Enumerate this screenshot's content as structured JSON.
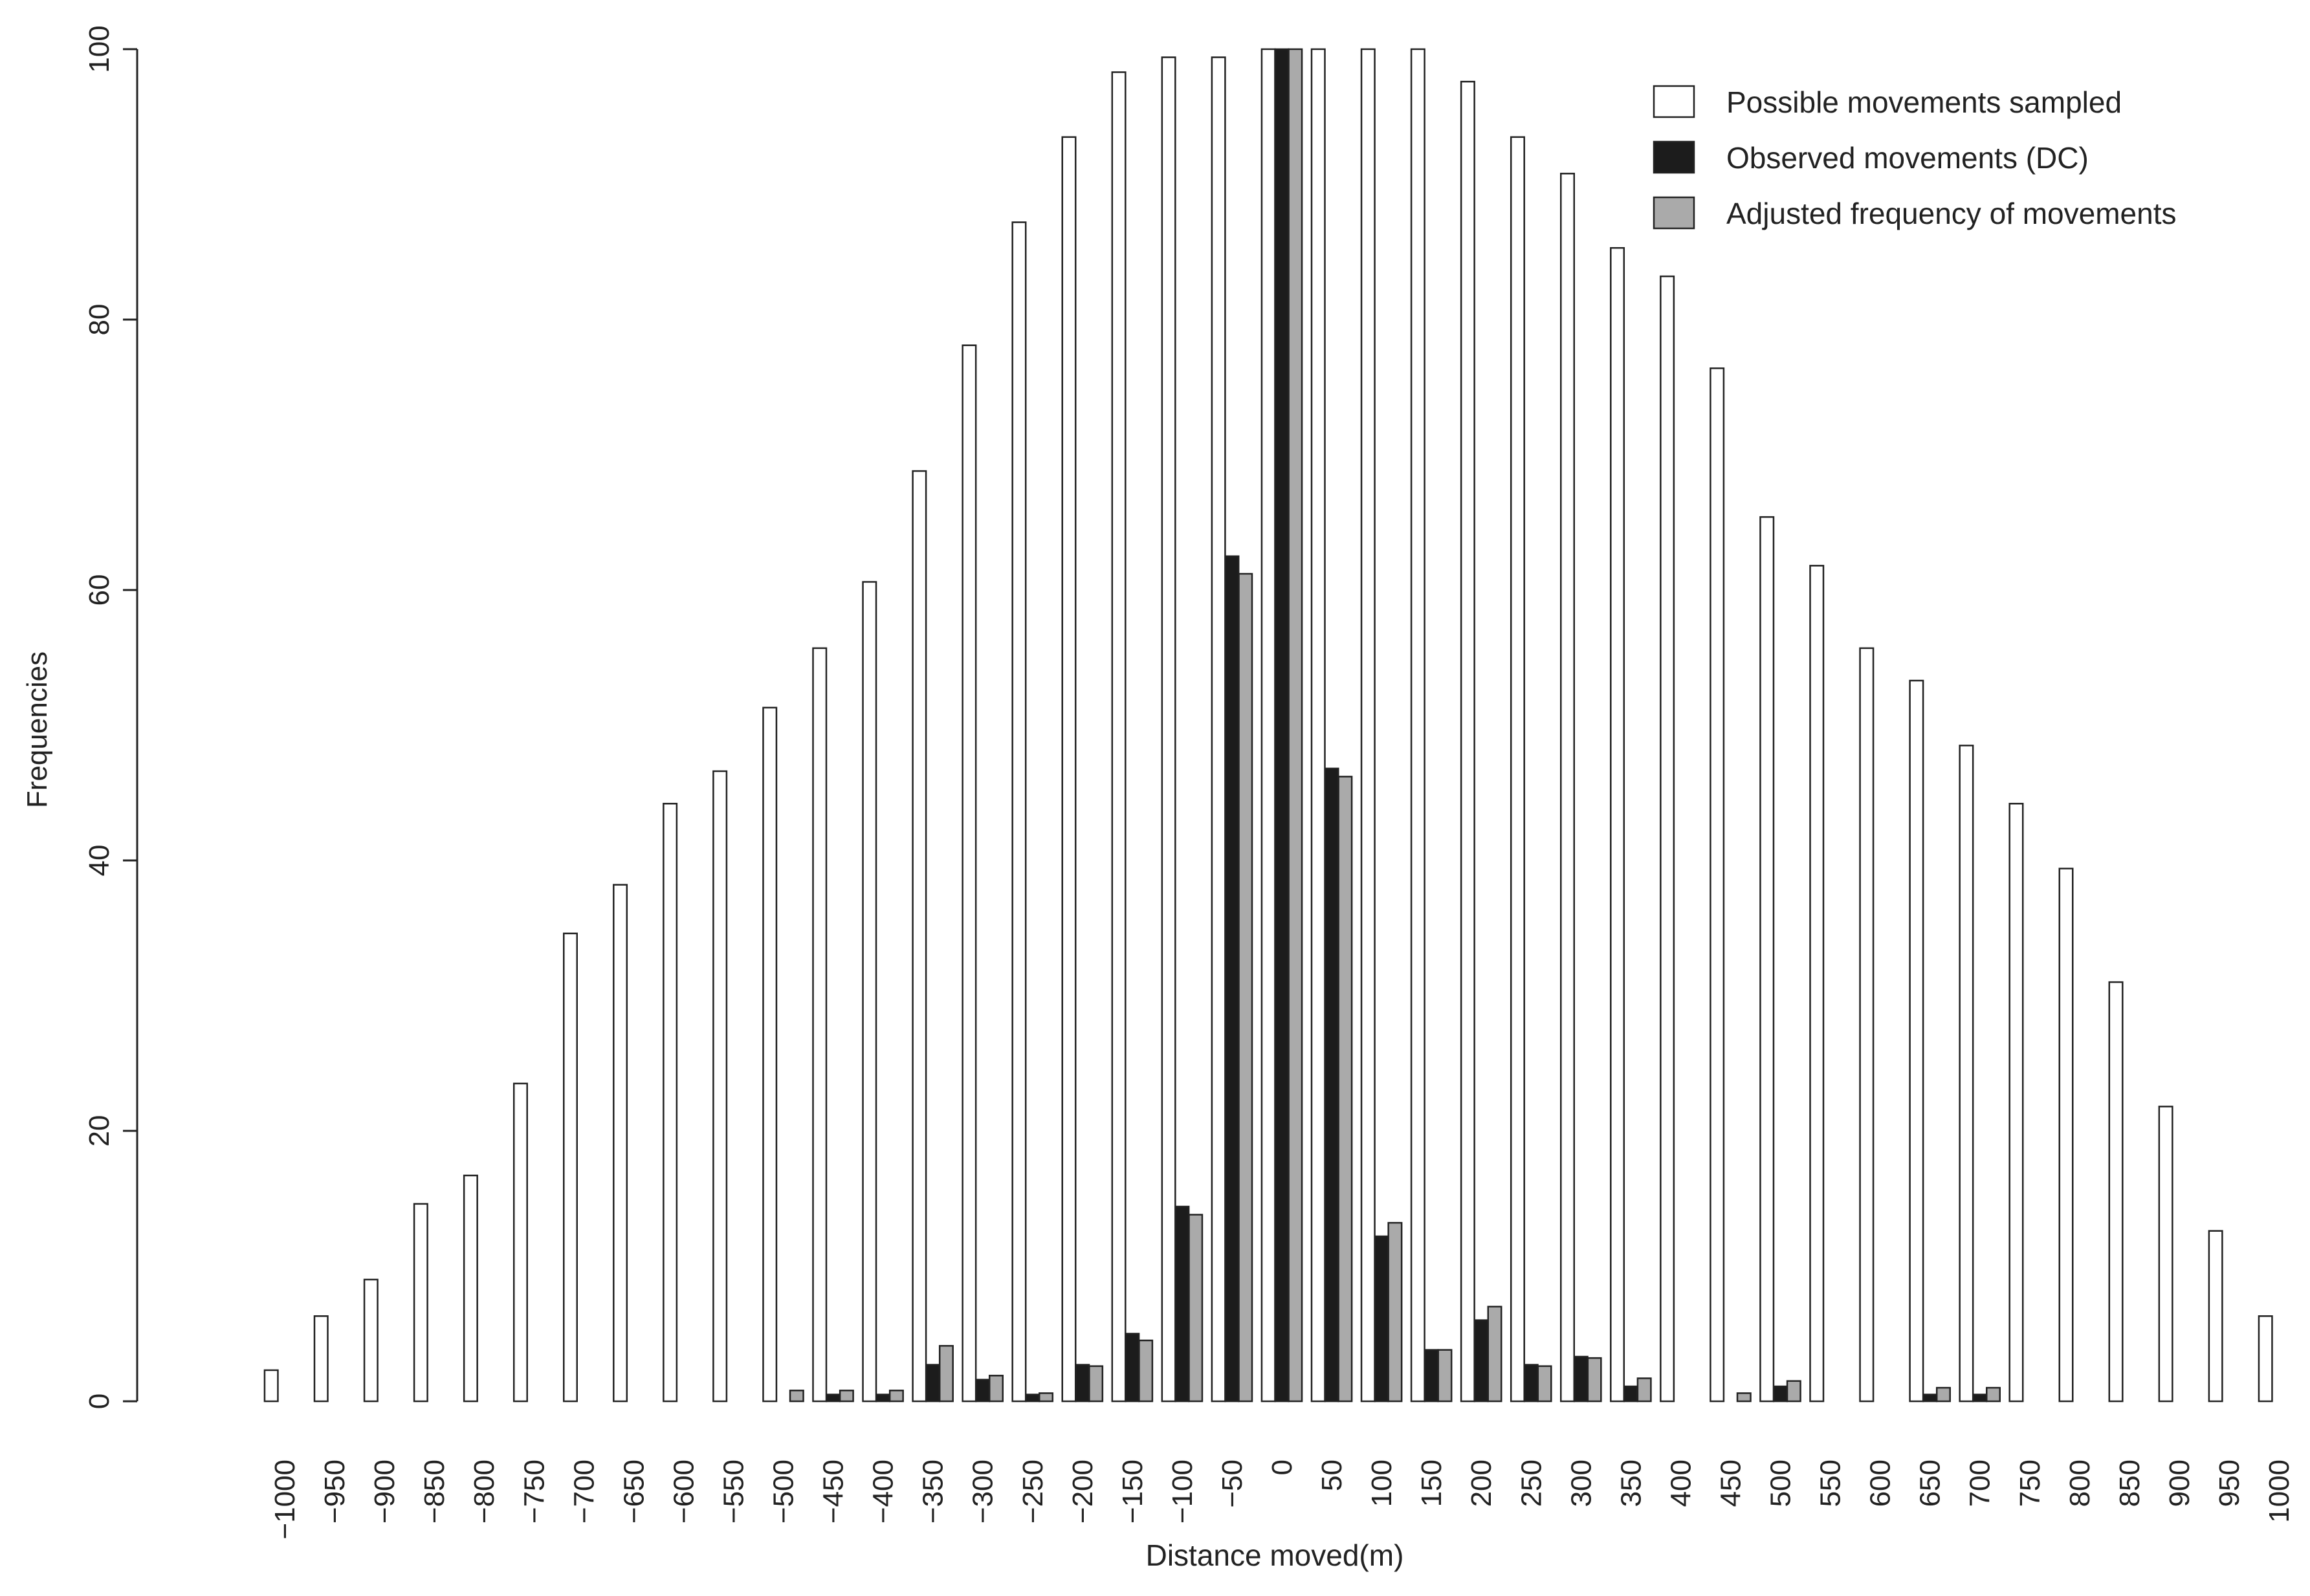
{
  "chart_data": {
    "type": "bar",
    "title": "",
    "xlabel": "Distance moved(m)",
    "ylabel": "Frequencies",
    "ylim": [
      0,
      100
    ],
    "yticks": [
      0,
      20,
      40,
      60,
      80,
      100
    ],
    "grid": false,
    "legend_position": "top-right",
    "categories": [
      "-1000",
      "-950",
      "-900",
      "-850",
      "-800",
      "-750",
      "-700",
      "-650",
      "-600",
      "-550",
      "-500",
      "-450",
      "-400",
      "-350",
      "-300",
      "-250",
      "-200",
      "-150",
      "-100",
      "-50",
      "0",
      "50",
      "100",
      "150",
      "200",
      "250",
      "300",
      "350",
      "400",
      "450",
      "500",
      "550",
      "600",
      "650",
      "700",
      "750",
      "800",
      "850",
      "900",
      "950",
      "1000"
    ],
    "series": [
      {
        "name": "Possible movements sampled",
        "color": "#ffffff",
        "values": [
          2.3,
          6.3,
          9.0,
          14.6,
          16.7,
          23.5,
          34.6,
          38.2,
          44.2,
          46.6,
          51.3,
          55.7,
          60.6,
          68.8,
          78.1,
          87.2,
          93.5,
          98.3,
          99.4,
          99.4,
          100,
          100,
          100,
          100,
          97.6,
          93.5,
          90.8,
          85.3,
          83.2,
          76.4,
          65.4,
          61.8,
          55.7,
          53.3,
          48.5,
          44.2,
          39.4,
          31.0,
          21.8,
          12.6,
          6.3
        ]
      },
      {
        "name": "Observed movements (DC)",
        "color": "#1c1c1c",
        "values": [
          0,
          0,
          0,
          0,
          0,
          0,
          0,
          0,
          0,
          0,
          0,
          0.5,
          0.5,
          2.7,
          1.6,
          0.5,
          2.7,
          5.0,
          14.4,
          62.5,
          100,
          46.8,
          12.2,
          3.8,
          6.0,
          2.7,
          3.3,
          1.1,
          0,
          0,
          1.1,
          0,
          0,
          0.5,
          0.5,
          0,
          0,
          0,
          0,
          0,
          0
        ]
      },
      {
        "name": "Adjusted frequency of movements",
        "color": "#aaaaaa",
        "values": [
          0,
          0,
          0,
          0,
          0,
          0,
          0,
          0,
          0,
          0,
          0.8,
          0.8,
          0.8,
          4.1,
          1.9,
          0.6,
          2.6,
          4.5,
          13.8,
          61.2,
          100,
          46.2,
          13.2,
          3.8,
          7.0,
          2.6,
          3.2,
          1.7,
          0,
          0.6,
          1.5,
          0,
          0,
          1.0,
          1.0,
          0,
          0,
          0,
          0,
          0,
          0
        ]
      }
    ]
  }
}
